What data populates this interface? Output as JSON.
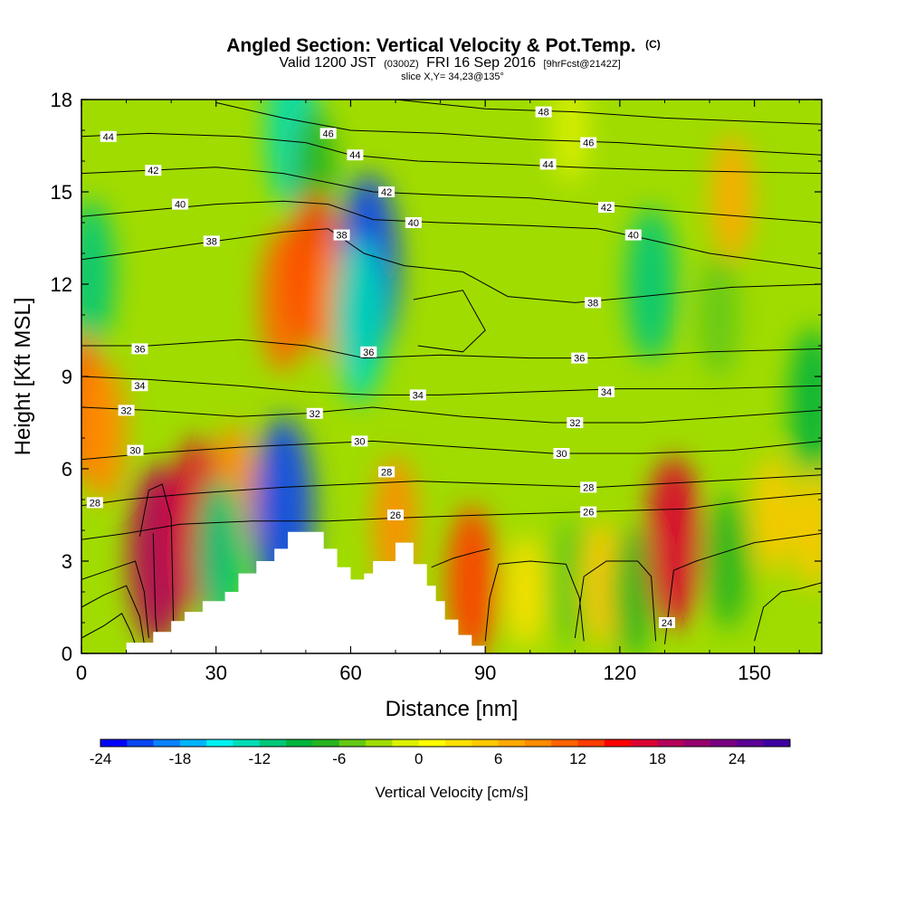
{
  "header": {
    "title_main": "Angled Section: Vertical Velocity & Pot.Temp.",
    "title_mark": "(C)",
    "valid_prefix": "Valid 1200 JST",
    "valid_zulu": "(0300Z)",
    "valid_date": "FRI 16 Sep 2016",
    "forecast_tag": "[9hrFcst@2142Z]",
    "slice": "slice X,Y= 34,23@135°"
  },
  "chart_data": {
    "type": "heatmap",
    "xlabel": "Distance [nm]",
    "ylabel": "Height [Kft MSL]",
    "xlim": [
      0,
      165
    ],
    "ylim": [
      0,
      18
    ],
    "x_ticks": [
      0,
      30,
      60,
      90,
      120,
      150
    ],
    "y_ticks": [
      0,
      3,
      6,
      9,
      12,
      15,
      18
    ],
    "colorbar": {
      "label": "Vertical Velocity [cm/s]",
      "min": -24,
      "max": 28,
      "step": 2,
      "tick_values": [
        -24,
        -18,
        -12,
        -6,
        0,
        6,
        12,
        18,
        24
      ],
      "colors": [
        "#0000ff",
        "#0a46f0",
        "#0a82ff",
        "#00b4ff",
        "#00f0f0",
        "#00dcb4",
        "#00c878",
        "#00b43c",
        "#28b41e",
        "#64c814",
        "#a0dc00",
        "#dcf000",
        "#ffff00",
        "#ffe000",
        "#ffc800",
        "#ffaa00",
        "#ff8c00",
        "#ff6400",
        "#ff3c00",
        "#ff0000",
        "#dc0032",
        "#b4005a",
        "#96006e",
        "#780082",
        "#5a0096",
        "#3c00a0"
      ]
    },
    "vertical_velocity_features": [
      {
        "x": 2,
        "y": 12.3,
        "w": -11
      },
      {
        "x": 0,
        "y": 8,
        "w": 10
      },
      {
        "x": 5,
        "y": 7.2,
        "w": 9
      },
      {
        "x": 17,
        "y": 3.2,
        "w": 18
      },
      {
        "x": 26,
        "y": 4.2,
        "w": 16
      },
      {
        "x": 34,
        "y": 5.2,
        "w": 8
      },
      {
        "x": 31,
        "y": 3.2,
        "w": -12
      },
      {
        "x": 45,
        "y": 4.6,
        "w": -22
      },
      {
        "x": 47,
        "y": 17,
        "w": -13
      },
      {
        "x": 52,
        "y": 15.5,
        "w": -8
      },
      {
        "x": 45,
        "y": 11.5,
        "w": 10
      },
      {
        "x": 52,
        "y": 12.5,
        "w": 12
      },
      {
        "x": 57,
        "y": 11.5,
        "w": 8
      },
      {
        "x": 64,
        "y": 12.5,
        "w": -22
      },
      {
        "x": 62,
        "y": 10.8,
        "w": -14
      },
      {
        "x": 70,
        "y": 4.2,
        "w": 8
      },
      {
        "x": 87,
        "y": 2.3,
        "w": 12
      },
      {
        "x": 99,
        "y": 2,
        "w": 3
      },
      {
        "x": 109,
        "y": 2.3,
        "w": -6
      },
      {
        "x": 116,
        "y": 2.3,
        "w": 5
      },
      {
        "x": 123,
        "y": 2,
        "w": -7
      },
      {
        "x": 132,
        "y": 3.6,
        "w": 16
      },
      {
        "x": 144,
        "y": 3,
        "w": -8
      },
      {
        "x": 127,
        "y": 12,
        "w": -12
      },
      {
        "x": 142,
        "y": 11,
        "w": -6
      },
      {
        "x": 145,
        "y": 14.8,
        "w": 6
      },
      {
        "x": 109,
        "y": 17,
        "w": -2
      },
      {
        "x": 100,
        "y": 13,
        "w": -3
      },
      {
        "x": 163,
        "y": 8.2,
        "w": -10
      },
      {
        "x": 154,
        "y": 4.5,
        "w": 4
      },
      {
        "x": 163,
        "y": 4,
        "w": 4
      }
    ],
    "terrain_profile": [
      {
        "x": 0,
        "h": 0
      },
      {
        "x": 10,
        "h": 0.35
      },
      {
        "x": 16,
        "h": 0.7
      },
      {
        "x": 20,
        "h": 1.05
      },
      {
        "x": 23,
        "h": 1.35
      },
      {
        "x": 27,
        "h": 1.7
      },
      {
        "x": 32,
        "h": 2.0
      },
      {
        "x": 35,
        "h": 2.6
      },
      {
        "x": 39,
        "h": 3.0
      },
      {
        "x": 43,
        "h": 3.4
      },
      {
        "x": 46,
        "h": 3.95
      },
      {
        "x": 51,
        "h": 3.95
      },
      {
        "x": 54,
        "h": 3.4
      },
      {
        "x": 57,
        "h": 2.8
      },
      {
        "x": 60,
        "h": 2.4
      },
      {
        "x": 63,
        "h": 2.6
      },
      {
        "x": 65,
        "h": 3.0
      },
      {
        "x": 70,
        "h": 3.6
      },
      {
        "x": 72,
        "h": 3.6
      },
      {
        "x": 74,
        "h": 2.9
      },
      {
        "x": 77,
        "h": 2.2
      },
      {
        "x": 79,
        "h": 1.7
      },
      {
        "x": 81,
        "h": 1.1
      },
      {
        "x": 84,
        "h": 0.6
      },
      {
        "x": 87,
        "h": 0.25
      },
      {
        "x": 90,
        "h": 0
      },
      {
        "x": 165,
        "h": 0
      }
    ],
    "isentropes": [
      {
        "label": "24",
        "pts": [
          [
            130,
            0.3
          ],
          [
            131,
            1.5
          ],
          [
            132,
            2.7
          ],
          [
            137,
            3.0
          ],
          [
            150,
            3.6
          ],
          [
            165,
            3.9
          ]
        ],
        "labels": [
          [
            130.5,
            1.0
          ]
        ]
      },
      {
        "label": "26",
        "pts": [
          [
            0,
            3.7
          ],
          [
            10,
            3.9
          ],
          [
            22,
            4.2
          ],
          [
            38,
            4.3
          ],
          [
            55,
            4.3
          ],
          [
            70,
            4.4
          ],
          [
            90,
            4.5
          ],
          [
            112,
            4.6
          ],
          [
            135,
            4.7
          ],
          [
            150,
            5.0
          ],
          [
            165,
            5.2
          ]
        ],
        "labels": [
          [
            70,
            4.5
          ],
          [
            113,
            4.6
          ]
        ]
      },
      {
        "label": "28",
        "pts": [
          [
            0,
            4.8
          ],
          [
            10,
            5.0
          ],
          [
            25,
            5.2
          ],
          [
            45,
            5.4
          ],
          [
            60,
            5.5
          ],
          [
            75,
            5.6
          ],
          [
            95,
            5.5
          ],
          [
            115,
            5.4
          ],
          [
            140,
            5.6
          ],
          [
            165,
            5.8
          ]
        ],
        "labels": [
          [
            3,
            4.9
          ],
          [
            68,
            5.9
          ],
          [
            113,
            5.4
          ]
        ]
      },
      {
        "label": "30",
        "pts": [
          [
            0,
            6.3
          ],
          [
            15,
            6.5
          ],
          [
            35,
            6.7
          ],
          [
            50,
            6.8
          ],
          [
            65,
            6.9
          ],
          [
            85,
            6.7
          ],
          [
            105,
            6.5
          ],
          [
            125,
            6.5
          ],
          [
            145,
            6.6
          ],
          [
            165,
            6.9
          ]
        ],
        "labels": [
          [
            12,
            6.6
          ],
          [
            62,
            6.9
          ],
          [
            107,
            6.5
          ]
        ]
      },
      {
        "label": "32",
        "pts": [
          [
            0,
            8.0
          ],
          [
            15,
            7.9
          ],
          [
            35,
            7.7
          ],
          [
            50,
            7.8
          ],
          [
            65,
            8.0
          ],
          [
            85,
            7.7
          ],
          [
            105,
            7.5
          ],
          [
            125,
            7.5
          ],
          [
            145,
            7.7
          ],
          [
            165,
            7.9
          ]
        ],
        "labels": [
          [
            10,
            7.9
          ],
          [
            52,
            7.8
          ],
          [
            110,
            7.5
          ]
        ]
      },
      {
        "label": "34",
        "pts": [
          [
            0,
            9.0
          ],
          [
            15,
            8.9
          ],
          [
            35,
            8.7
          ],
          [
            50,
            8.5
          ],
          [
            65,
            8.4
          ],
          [
            80,
            8.4
          ],
          [
            100,
            8.5
          ],
          [
            120,
            8.6
          ],
          [
            140,
            8.6
          ],
          [
            165,
            8.7
          ]
        ],
        "labels": [
          [
            13,
            8.7
          ],
          [
            75,
            8.4
          ],
          [
            117,
            8.5
          ]
        ]
      },
      {
        "label": "36",
        "pts": [
          [
            0,
            10.0
          ],
          [
            15,
            10.0
          ],
          [
            35,
            10.2
          ],
          [
            50,
            10.0
          ],
          [
            63,
            9.6
          ],
          [
            80,
            9.7
          ],
          [
            100,
            9.6
          ],
          [
            115,
            9.6
          ],
          [
            140,
            9.8
          ],
          [
            165,
            9.9
          ]
        ],
        "labels": [
          [
            13,
            9.9
          ],
          [
            64,
            9.8
          ],
          [
            111,
            9.6
          ]
        ]
      },
      {
        "label": "38",
        "pts": [
          [
            0,
            12.8
          ],
          [
            15,
            13.1
          ],
          [
            30,
            13.4
          ],
          [
            45,
            13.7
          ],
          [
            55,
            13.8
          ],
          [
            63,
            13.0
          ],
          [
            72,
            12.6
          ],
          [
            85,
            12.4
          ],
          [
            95,
            11.6
          ],
          [
            110,
            11.4
          ],
          [
            125,
            11.6
          ],
          [
            145,
            11.9
          ],
          [
            165,
            12.0
          ]
        ],
        "labels": [
          [
            29,
            13.4
          ],
          [
            58,
            13.6
          ],
          [
            114,
            11.4
          ]
        ]
      },
      {
        "label": "40",
        "pts": [
          [
            0,
            14.2
          ],
          [
            15,
            14.4
          ],
          [
            30,
            14.6
          ],
          [
            45,
            14.7
          ],
          [
            55,
            14.6
          ],
          [
            65,
            14.1
          ],
          [
            80,
            14.0
          ],
          [
            100,
            13.9
          ],
          [
            115,
            13.8
          ],
          [
            125,
            13.5
          ],
          [
            140,
            13.0
          ],
          [
            165,
            12.5
          ]
        ],
        "labels": [
          [
            22,
            14.6
          ],
          [
            74,
            14.0
          ],
          [
            123,
            13.6
          ]
        ]
      },
      {
        "label": "42",
        "pts": [
          [
            0,
            15.6
          ],
          [
            15,
            15.7
          ],
          [
            30,
            15.8
          ],
          [
            45,
            15.6
          ],
          [
            55,
            15.3
          ],
          [
            65,
            15.0
          ],
          [
            80,
            14.9
          ],
          [
            100,
            14.8
          ],
          [
            115,
            14.6
          ],
          [
            130,
            14.4
          ],
          [
            165,
            14.0
          ]
        ],
        "labels": [
          [
            16,
            15.7
          ],
          [
            68,
            15.0
          ],
          [
            117,
            14.5
          ]
        ]
      },
      {
        "label": "44",
        "pts": [
          [
            0,
            16.8
          ],
          [
            15,
            16.9
          ],
          [
            35,
            16.8
          ],
          [
            50,
            16.6
          ],
          [
            60,
            16.2
          ],
          [
            75,
            16.0
          ],
          [
            95,
            15.9
          ],
          [
            110,
            15.8
          ],
          [
            130,
            15.7
          ],
          [
            165,
            15.6
          ]
        ],
        "labels": [
          [
            6,
            16.8
          ],
          [
            61,
            16.2
          ],
          [
            104,
            15.9
          ]
        ]
      },
      {
        "label": "46",
        "pts": [
          [
            30,
            17.9
          ],
          [
            45,
            17.4
          ],
          [
            60,
            17.0
          ],
          [
            80,
            16.9
          ],
          [
            100,
            16.7
          ],
          [
            120,
            16.6
          ],
          [
            140,
            16.4
          ],
          [
            165,
            16.2
          ]
        ],
        "labels": [
          [
            55,
            16.9
          ],
          [
            113,
            16.6
          ]
        ]
      },
      {
        "label": "48",
        "pts": [
          [
            70,
            18.0
          ],
          [
            90,
            17.7
          ],
          [
            110,
            17.6
          ],
          [
            130,
            17.4
          ],
          [
            165,
            17.2
          ]
        ],
        "labels": [
          [
            103,
            17.6
          ]
        ]
      }
    ],
    "extra_contours": [
      [
        [
          0,
          0.5
        ],
        [
          5,
          0.9
        ],
        [
          9,
          1.3
        ],
        [
          11,
          0.7
        ],
        [
          12,
          0.3
        ]
      ],
      [
        [
          0,
          1.5
        ],
        [
          5,
          1.9
        ],
        [
          10,
          2.2
        ],
        [
          13,
          1.2
        ],
        [
          14,
          0.3
        ]
      ],
      [
        [
          0,
          2.4
        ],
        [
          6,
          2.7
        ],
        [
          12,
          3.0
        ],
        [
          14,
          2.0
        ],
        [
          15,
          0.5
        ]
      ],
      [
        [
          13,
          3.8
        ],
        [
          15,
          5.3
        ],
        [
          18,
          5.5
        ],
        [
          20,
          4.4
        ],
        [
          20.5,
          1.0
        ]
      ],
      [
        [
          16,
          3.9
        ],
        [
          16.5,
          1.2
        ],
        [
          17,
          0.4
        ]
      ],
      [
        [
          90,
          0.4
        ],
        [
          91,
          1.8
        ],
        [
          93,
          2.9
        ],
        [
          100,
          3.0
        ],
        [
          108,
          2.9
        ],
        [
          111,
          1.8
        ],
        [
          112,
          0.4
        ]
      ],
      [
        [
          110,
          0.5
        ],
        [
          112,
          2.5
        ],
        [
          117,
          3.0
        ],
        [
          124,
          3.0
        ],
        [
          127,
          2.5
        ],
        [
          128,
          0.4
        ]
      ],
      [
        [
          150,
          0.4
        ],
        [
          152,
          1.5
        ],
        [
          156,
          2.0
        ],
        [
          160,
          2.1
        ],
        [
          165,
          2.3
        ]
      ],
      [
        [
          78,
          2.8
        ],
        [
          83,
          3.1
        ],
        [
          88,
          3.3
        ],
        [
          91,
          3.4
        ]
      ],
      [
        [
          74,
          11.5
        ],
        [
          85,
          11.8
        ],
        [
          90,
          10.5
        ],
        [
          85,
          9.8
        ],
        [
          75,
          10.0
        ]
      ]
    ]
  }
}
